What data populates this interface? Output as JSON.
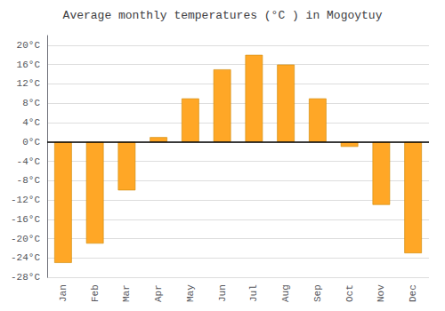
{
  "chart_data": {
    "type": "bar",
    "title": "Average monthly temperatures (°C ) in Mogoytuy",
    "categories": [
      "Jan",
      "Feb",
      "Mar",
      "Apr",
      "May",
      "Jun",
      "Jul",
      "Aug",
      "Sep",
      "Oct",
      "Nov",
      "Dec"
    ],
    "values": [
      -25,
      -21,
      -10,
      1,
      9,
      15,
      18,
      16,
      9,
      -1,
      -13,
      -23
    ],
    "color": "#FFA726",
    "ylim": [
      -28,
      22
    ],
    "yticks": [
      {
        "value": -28,
        "label": "-28°C"
      },
      {
        "value": -24,
        "label": "-24°C"
      },
      {
        "value": -20,
        "label": "-20°C"
      },
      {
        "value": -16,
        "label": "-16°C"
      },
      {
        "value": -12,
        "label": "-12°C"
      },
      {
        "value": -8,
        "label": "-8°C"
      },
      {
        "value": -4,
        "label": "-4°C"
      },
      {
        "value": 0,
        "label": "0°C"
      },
      {
        "value": 4,
        "label": "4°C"
      },
      {
        "value": 8,
        "label": "8°C"
      },
      {
        "value": 12,
        "label": "12°C"
      },
      {
        "value": 16,
        "label": "16°C"
      },
      {
        "value": 20,
        "label": "20°C"
      }
    ],
    "grid": true
  }
}
